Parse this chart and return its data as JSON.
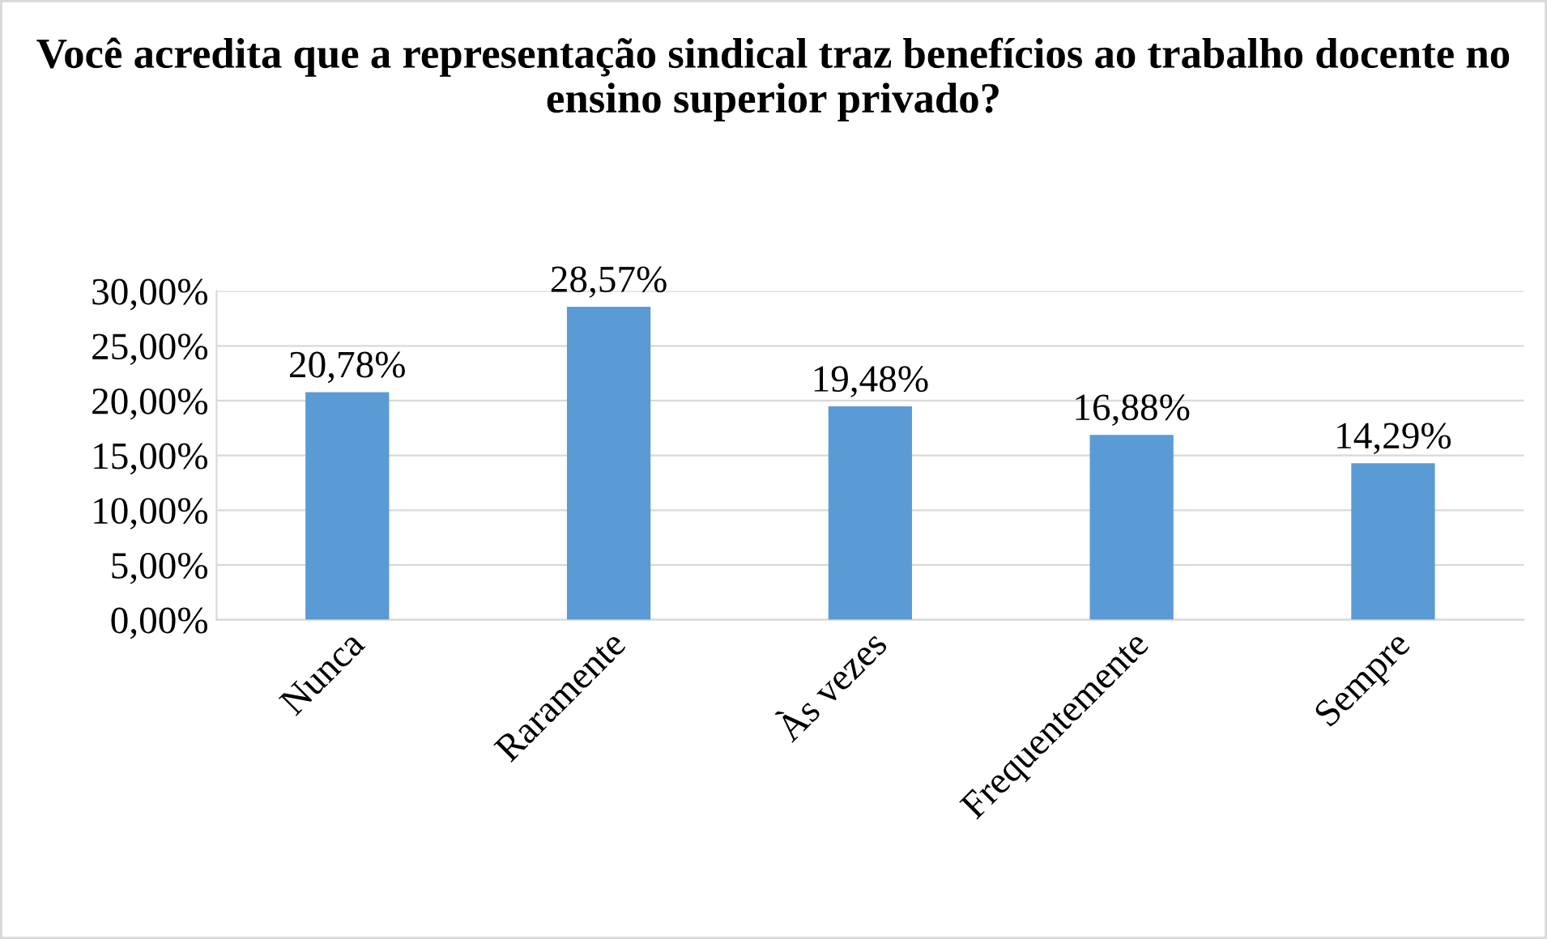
{
  "chart_data": {
    "type": "bar",
    "title": "Você acredita que a representação sindical traz benefícios ao trabalho docente no ensino superior privado?",
    "categories": [
      "Nunca",
      "Raramente",
      "Às vezes",
      "Frequentemente",
      "Sempre"
    ],
    "values": [
      20.78,
      28.57,
      19.48,
      16.88,
      14.29
    ],
    "value_labels": [
      "20,78%",
      "28,57%",
      "19,48%",
      "16,88%",
      "14,29%"
    ],
    "color": "#5b9bd5",
    "ylim": [
      0,
      30
    ],
    "yticks": [
      {
        "value": 0,
        "label": "0,00%"
      },
      {
        "value": 5,
        "label": "5,00%"
      },
      {
        "value": 10,
        "label": "10,00%"
      },
      {
        "value": 15,
        "label": "15,00%"
      },
      {
        "value": 20,
        "label": "20,00%"
      },
      {
        "value": 25,
        "label": "25,00%"
      },
      {
        "value": 30,
        "label": "30,00%"
      }
    ],
    "grid": "y",
    "legend": false
  }
}
